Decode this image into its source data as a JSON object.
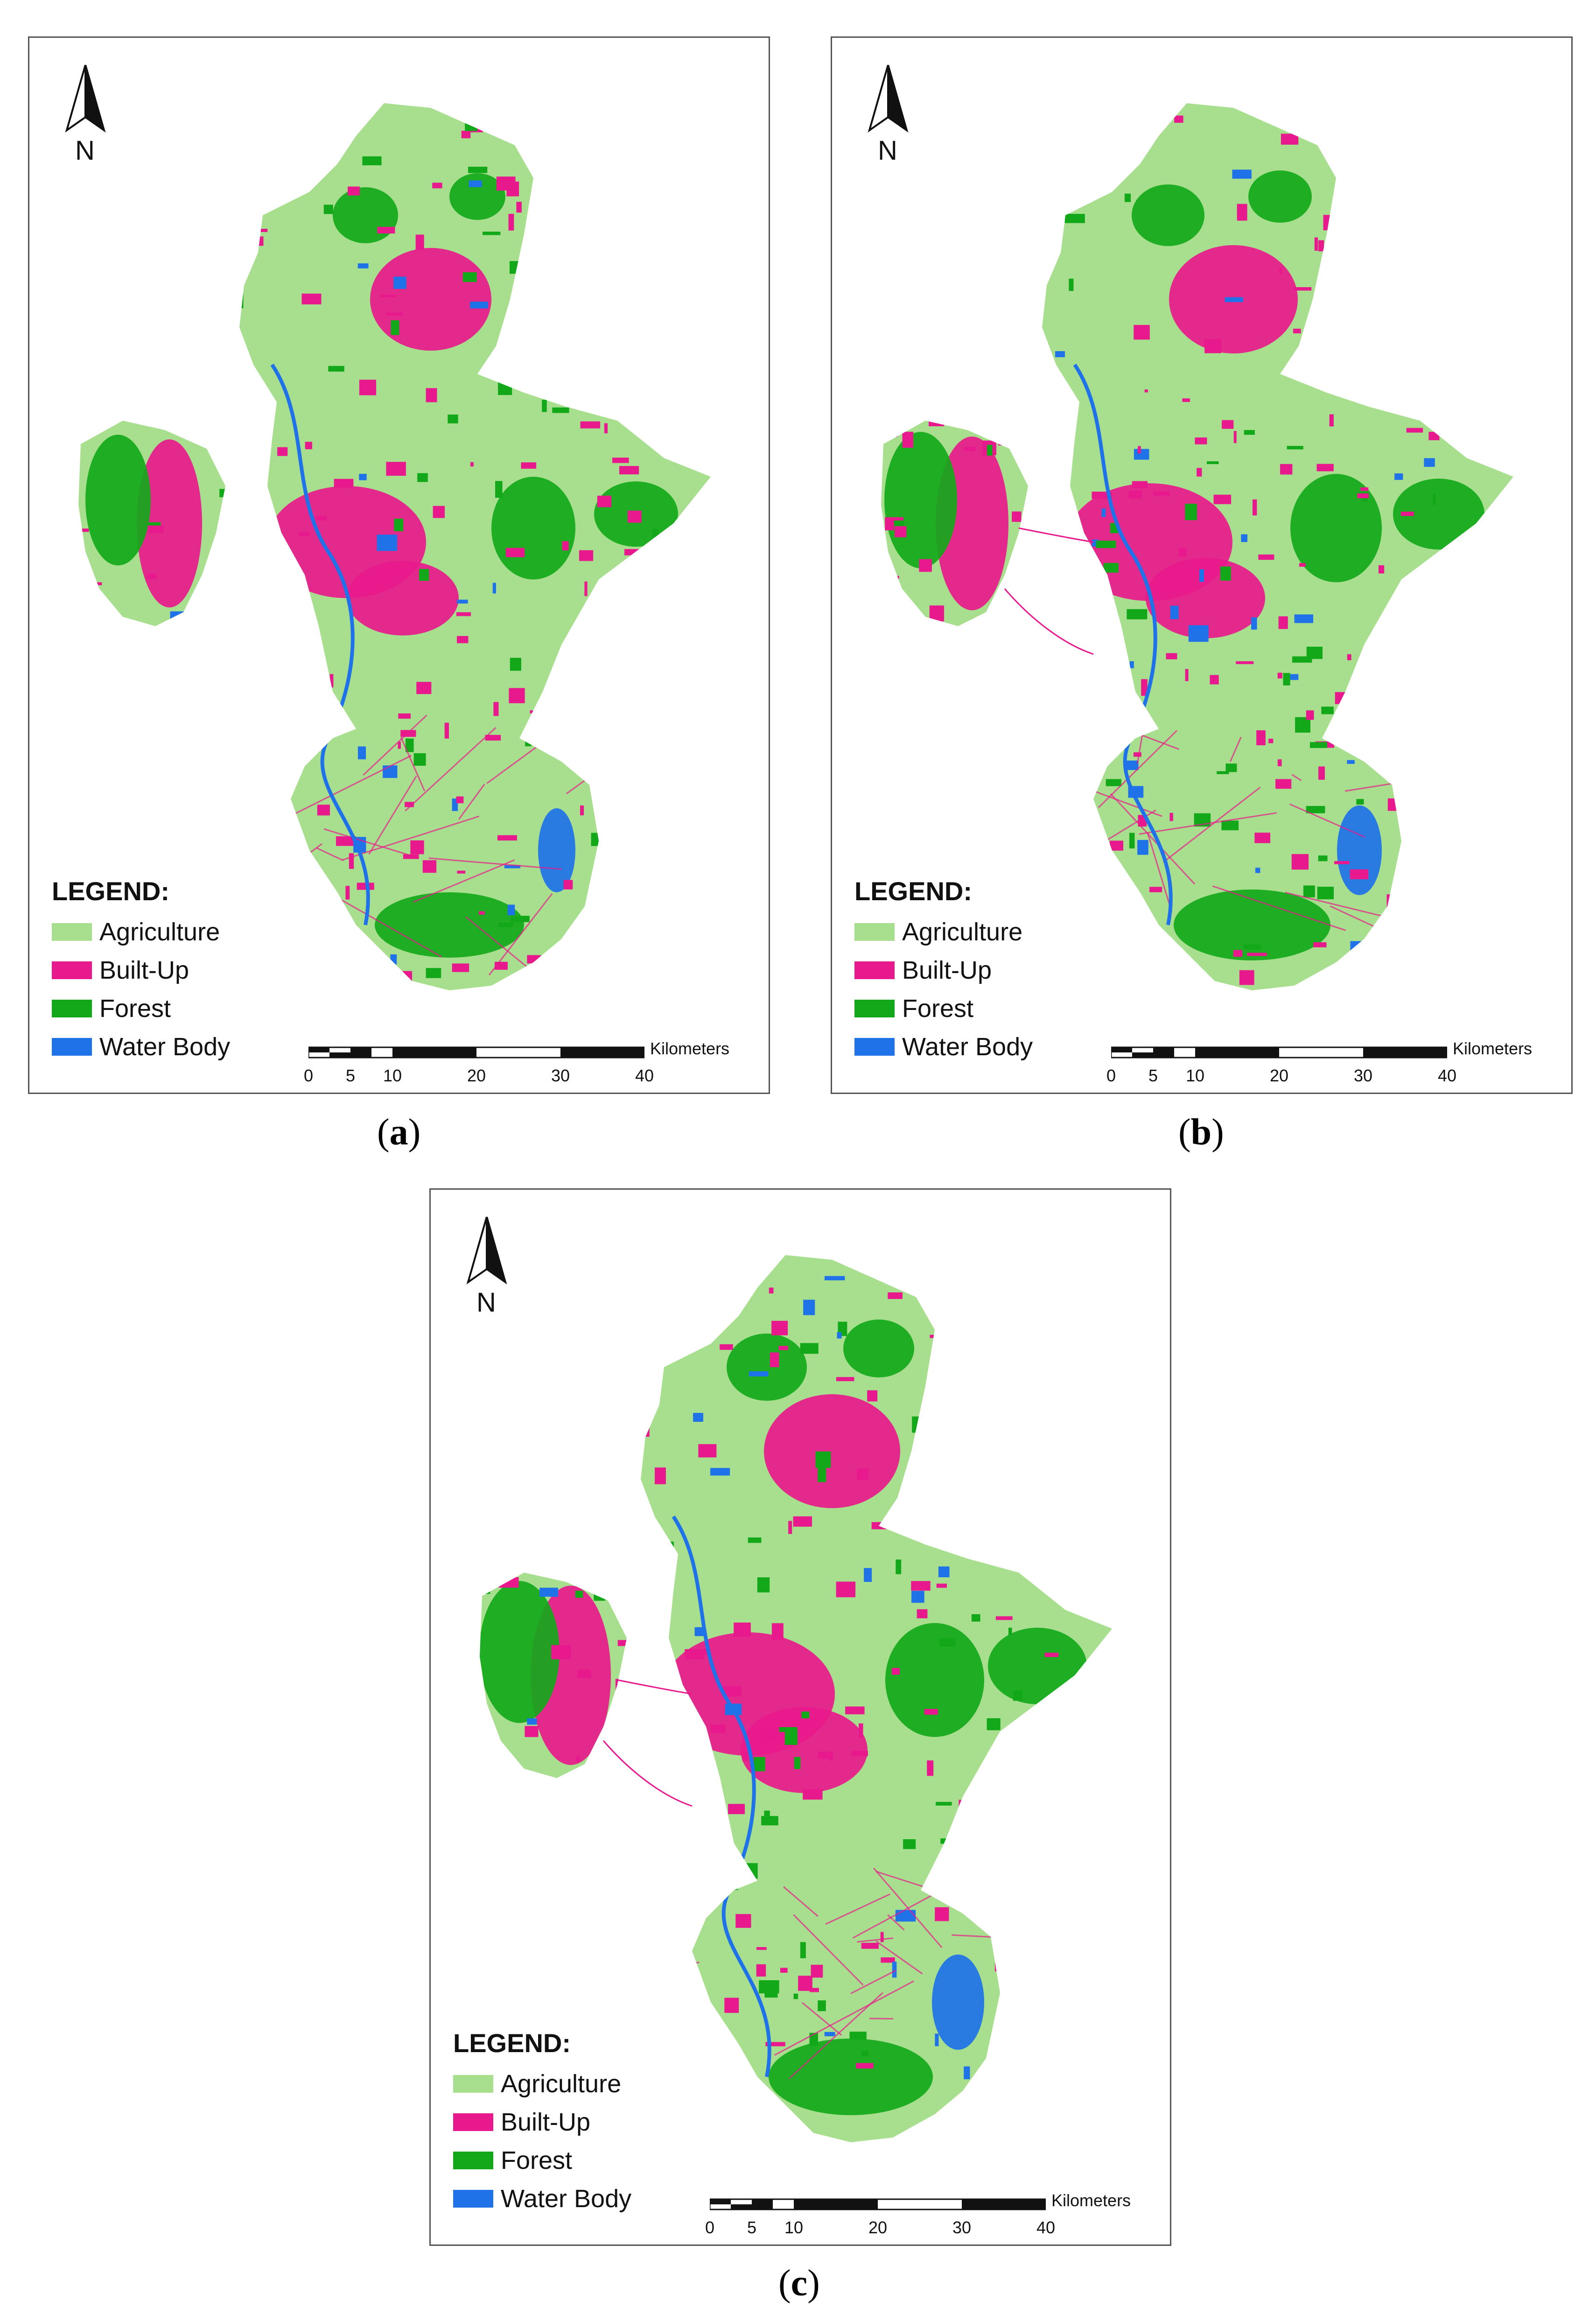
{
  "colors": {
    "agriculture": "#a8df8e",
    "built_up": "#e8198c",
    "forest": "#13a81a",
    "water_body": "#1f72e8"
  },
  "panels": [
    {
      "caption_letter": "a"
    },
    {
      "caption_letter": "b"
    },
    {
      "caption_letter": "c"
    }
  ],
  "north_arrow": {
    "label": "N",
    "icon": "north-arrow-icon"
  },
  "legend": {
    "title": "LEGEND:",
    "items": [
      {
        "label": "Agriculture",
        "color_key": "agriculture"
      },
      {
        "label": "Built-Up",
        "color_key": "built_up"
      },
      {
        "label": "Forest",
        "color_key": "forest"
      },
      {
        "label": "Water Body",
        "color_key": "water_body"
      }
    ]
  },
  "scale_bar": {
    "unit": "Kilometers",
    "ticks": [
      "0",
      "5",
      "10",
      "20",
      "30",
      "40"
    ]
  }
}
